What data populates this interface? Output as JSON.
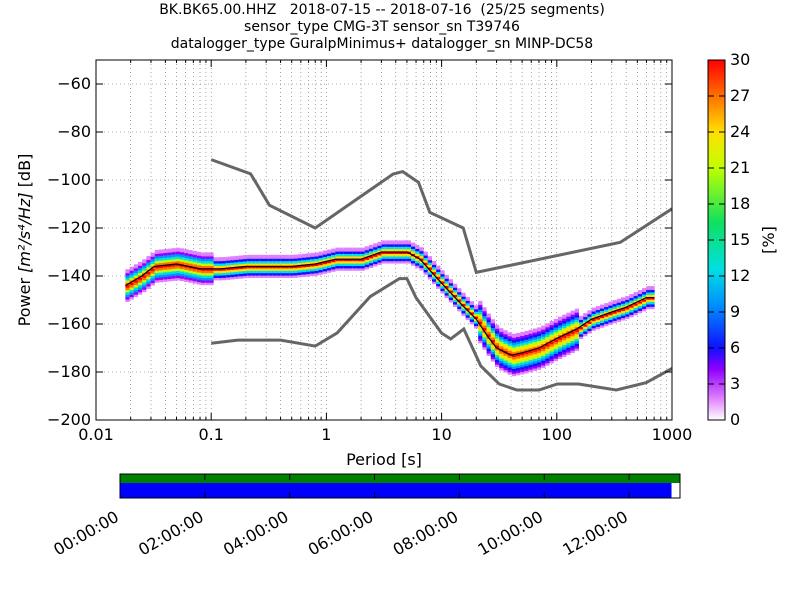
{
  "header": {
    "title_line1": "BK.BK65.00.HHZ   2018-07-15 -- 2018-07-16  (25/25 segments)",
    "title_line2": "sensor_type CMG-3T sensor_sn T39746",
    "title_line3": "datalogger_type GuralpMinimus+ datalogger_sn MINP-DC58"
  },
  "colors": {
    "model_curve": "#666666",
    "coverage_data": "#0000ff",
    "coverage_gaps": "#008000",
    "median_line": "#000000"
  },
  "chart_data": [
    {
      "type": "heatmap",
      "name": "ppsd",
      "xlabel": "Period [s]",
      "ylabel_prefix": "Power ",
      "ylabel_units": "[m²/s⁴/Hz]",
      "ylabel_suffix": " [dB]",
      "x_scale": "log",
      "xlim": [
        0.01,
        1000
      ],
      "ylim": [
        -200,
        -50
      ],
      "x_ticks": [
        {
          "value": 0.01,
          "label": "0.01"
        },
        {
          "value": 0.1,
          "label": "0.1"
        },
        {
          "value": 1,
          "label": "1"
        },
        {
          "value": 10,
          "label": "10"
        },
        {
          "value": 100,
          "label": "100"
        },
        {
          "value": 1000,
          "label": "1000"
        }
      ],
      "y_ticks": [
        -60,
        -80,
        -100,
        -120,
        -140,
        -160,
        -180,
        -200
      ],
      "grid": "dotted",
      "colorbar": {
        "label": "[%]",
        "range": [
          0,
          30
        ],
        "ticks": [
          0,
          3,
          6,
          9,
          12,
          15,
          18,
          21,
          24,
          27,
          30
        ]
      },
      "high_noise_model": [
        [
          0.1,
          -91.5
        ],
        [
          0.22,
          -97.4
        ],
        [
          0.32,
          -110.5
        ],
        [
          0.8,
          -120
        ],
        [
          3.8,
          -97.5
        ],
        [
          4.6,
          -96.5
        ],
        [
          6.3,
          -101
        ],
        [
          7.9,
          -113.5
        ],
        [
          15.4,
          -120
        ],
        [
          20,
          -138.5
        ],
        [
          354.8,
          -126
        ],
        [
          1000,
          -112
        ]
      ],
      "low_noise_model": [
        [
          0.1,
          -168
        ],
        [
          0.17,
          -166.7
        ],
        [
          0.4,
          -166.7
        ],
        [
          0.8,
          -169.2
        ],
        [
          1.24,
          -163.7
        ],
        [
          2.4,
          -148.6
        ],
        [
          4.3,
          -141.1
        ],
        [
          5,
          -141.1
        ],
        [
          6,
          -149
        ],
        [
          10,
          -163.8
        ],
        [
          12,
          -166.2
        ],
        [
          15.6,
          -162.1
        ],
        [
          21.9,
          -177.5
        ],
        [
          31.6,
          -185
        ],
        [
          45,
          -187.5
        ],
        [
          70,
          -187.5
        ],
        [
          101,
          -185
        ],
        [
          154,
          -185
        ],
        [
          328,
          -187.5
        ],
        [
          600,
          -184.4
        ],
        [
          1000,
          -178.5
        ]
      ],
      "median": [
        [
          0.018,
          -144
        ],
        [
          0.025,
          -140
        ],
        [
          0.032,
          -136
        ],
        [
          0.05,
          -135
        ],
        [
          0.08,
          -137
        ],
        [
          0.12,
          -137
        ],
        [
          0.2,
          -136
        ],
        [
          0.3,
          -136
        ],
        [
          0.5,
          -136
        ],
        [
          0.8,
          -135
        ],
        [
          1.2,
          -133
        ],
        [
          2,
          -133
        ],
        [
          3,
          -130
        ],
        [
          5,
          -130
        ],
        [
          6.5,
          -133
        ],
        [
          10,
          -143
        ],
        [
          15,
          -152
        ],
        [
          20,
          -158
        ],
        [
          25,
          -165
        ],
        [
          30,
          -170
        ],
        [
          40,
          -173
        ],
        [
          50,
          -172
        ],
        [
          70,
          -170
        ],
        [
          100,
          -166
        ],
        [
          150,
          -162
        ],
        [
          200,
          -158
        ],
        [
          300,
          -155
        ],
        [
          400,
          -153
        ],
        [
          600,
          -149
        ],
        [
          700,
          -149
        ]
      ]
    },
    {
      "type": "bar",
      "name": "coverage",
      "x_tick_labels": [
        "00:00:00",
        "02:00:00",
        "04:00:00",
        "06:00:00",
        "08:00:00",
        "10:00:00",
        "12:00:00"
      ],
      "x_tick_hours": [
        0,
        2,
        4,
        6,
        8,
        10,
        12
      ],
      "x_range_hours": [
        0,
        13.2
      ],
      "data_end_hours": 13.0,
      "gaps_end_hours": 13.2
    }
  ]
}
